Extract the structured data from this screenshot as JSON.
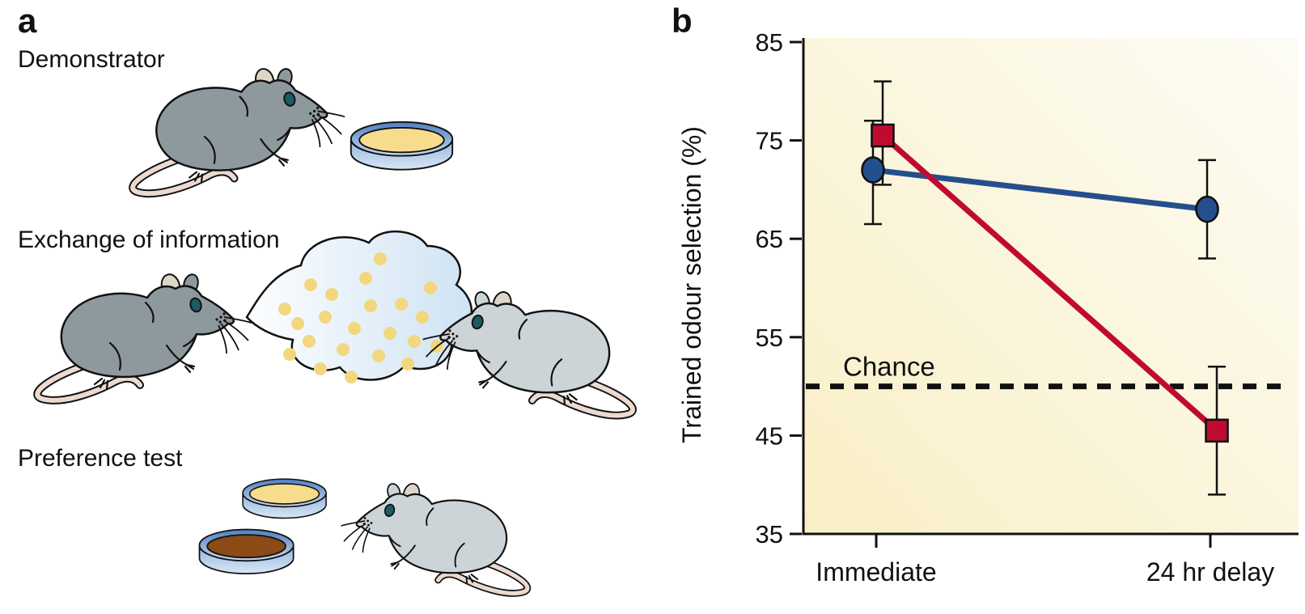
{
  "panel_a": {
    "label": "a",
    "steps": [
      {
        "label": "Demonstrator",
        "illustrations": [
          "dark-grey-rat-facing-right",
          "dish-with-yellow-food"
        ]
      },
      {
        "label": "Exchange of information",
        "illustrations": [
          "dark-grey-rat-facing-right",
          "breath-cloud-with-odour-particles",
          "light-grey-rat-facing-left"
        ]
      },
      {
        "label": "Preference test",
        "illustrations": [
          "dish-with-yellow-food",
          "dish-with-brown-food",
          "light-grey-rat-facing-left"
        ]
      }
    ],
    "colors": {
      "dark_rat": "#8e999e",
      "light_rat": "#ccd4d8",
      "dish_rim_blue": "#4f7fc0",
      "food_yellow": "#f7dc8d",
      "food_brown": "#8b4a16",
      "cloud_blue": "#cfe3f3",
      "odour_dot_yellow": "#f3d77e",
      "tail_pink": "#ecd9d0",
      "eye_teal": "#1d5a63"
    }
  },
  "panel_b": {
    "label": "b"
  },
  "chart_data": {
    "type": "line",
    "title": "",
    "xlabel": "",
    "ylabel": "Trained odour selection (%)",
    "categories": [
      "Immediate",
      "24 hr delay"
    ],
    "ylim": [
      35,
      85
    ],
    "yticks": [
      85,
      75,
      65,
      55,
      45,
      35
    ],
    "grid": false,
    "legend": "none",
    "plot_background": {
      "type": "gradient",
      "from": "#f9efc5",
      "to": "#fdfcf4"
    },
    "series": [
      {
        "name": "blue-circles",
        "marker": "circle",
        "color": "#254f8c",
        "values": [
          72,
          68
        ],
        "error_high": [
          77,
          73
        ],
        "error_low": [
          66.5,
          63
        ]
      },
      {
        "name": "red-squares",
        "marker": "square",
        "color": "#c00b31",
        "values": [
          75.5,
          45.5
        ],
        "error_high": [
          81,
          52
        ],
        "error_low": [
          70.5,
          39
        ]
      }
    ],
    "reference_line": {
      "label": "Chance",
      "value": 50,
      "style": "dashed",
      "color": "#111111"
    }
  }
}
